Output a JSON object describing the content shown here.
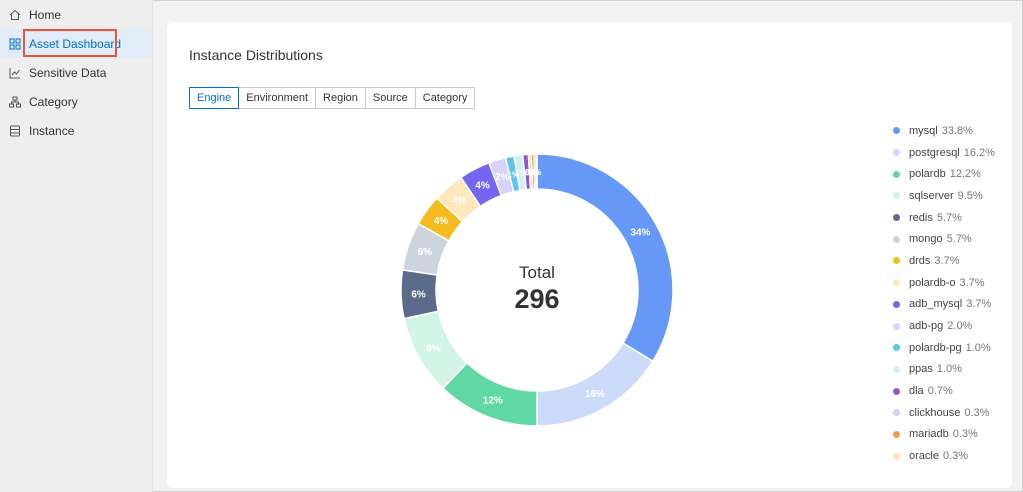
{
  "sidebar": {
    "items": [
      {
        "label": "Home",
        "icon": "home-icon"
      },
      {
        "label": "Asset Dashboard",
        "icon": "dashboard-icon"
      },
      {
        "label": "Sensitive Data",
        "icon": "chart-icon"
      },
      {
        "label": "Category",
        "icon": "hierarchy-icon"
      },
      {
        "label": "Instance",
        "icon": "database-icon"
      }
    ],
    "active_index": 1
  },
  "main": {
    "title": "Instance Distributions",
    "tabs": [
      "Engine",
      "Environment",
      "Region",
      "Source",
      "Category"
    ],
    "selected_tab": 0
  },
  "chart_data": {
    "type": "pie",
    "variant": "donut",
    "center_label": "Total",
    "center_value": "296",
    "slices": [
      {
        "name": "mysql",
        "value": 100,
        "pct": "33.8%",
        "label": "34%",
        "color": "#6699f7"
      },
      {
        "name": "postgresql",
        "value": 48,
        "pct": "16.2%",
        "label": "16%",
        "color": "#cddbfa"
      },
      {
        "name": "polardb",
        "value": 36,
        "pct": "12.2%",
        "label": "12%",
        "color": "#5fd8a6"
      },
      {
        "name": "sqlserver",
        "value": 28,
        "pct": "9.5%",
        "label": "9%",
        "color": "#d2f4e6"
      },
      {
        "name": "redis",
        "value": 17,
        "pct": "5.7%",
        "label": "6%",
        "color": "#5b6b8b"
      },
      {
        "name": "mongo",
        "value": 17,
        "pct": "5.7%",
        "label": "6%",
        "color": "#ced4de"
      },
      {
        "name": "drds",
        "value": 11,
        "pct": "3.7%",
        "label": "4%",
        "color": "#f5bb20"
      },
      {
        "name": "polardb-o",
        "value": 11,
        "pct": "3.7%",
        "label": "4%",
        "color": "#fde8be"
      },
      {
        "name": "adb_mysql",
        "value": 11,
        "pct": "3.7%",
        "label": "4%",
        "color": "#7466f0"
      },
      {
        "name": "adb-pg",
        "value": 6,
        "pct": "2.0%",
        "label": "2%",
        "color": "#d7d3fb"
      },
      {
        "name": "polardb-pg",
        "value": 3,
        "pct": "1.0%",
        "label": "1%",
        "color": "#5ec4ec"
      },
      {
        "name": "ppas",
        "value": 3,
        "pct": "1.0%",
        "label": "1%",
        "color": "#cfeffa"
      },
      {
        "name": "dla",
        "value": 2,
        "pct": "0.7%",
        "label": "1%",
        "color": "#8d5cc0"
      },
      {
        "name": "clickhouse",
        "value": 1,
        "pct": "0.3%",
        "label": "0%",
        "color": "#ded0ee"
      },
      {
        "name": "mariadb",
        "value": 1,
        "pct": "0.3%",
        "label": "0%",
        "color": "#f29a4a"
      },
      {
        "name": "oracle",
        "value": 1,
        "pct": "0.3%",
        "label": "0%",
        "color": "#fde0c6"
      }
    ]
  }
}
